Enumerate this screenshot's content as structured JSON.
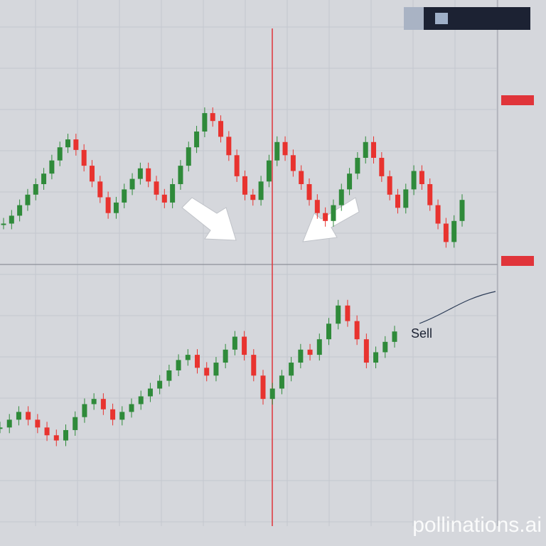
{
  "chart_data": [
    {
      "type": "candlestick",
      "values": [
        15,
        18,
        22,
        26,
        30,
        34,
        39,
        44,
        47,
        43,
        37,
        31,
        25,
        19,
        23,
        28,
        32,
        36,
        31,
        26,
        23,
        30,
        37,
        44,
        50,
        57,
        54,
        48,
        41,
        33,
        26,
        24,
        31,
        39,
        46,
        41,
        35,
        30,
        24,
        19,
        16,
        22,
        28,
        34,
        40,
        46,
        40,
        33,
        26,
        21,
        28,
        35,
        30,
        22,
        15,
        8,
        16,
        24
      ],
      "colors": {
        "up": "#2f8a3a",
        "down": "#e8332f"
      }
    },
    {
      "type": "candlestick",
      "values": [
        38,
        41,
        44,
        41,
        38,
        35,
        33,
        37,
        42,
        47,
        49,
        45,
        41,
        44,
        47,
        50,
        53,
        56,
        60,
        64,
        66,
        61,
        58,
        63,
        68,
        73,
        66,
        58,
        49,
        53,
        58,
        63,
        68,
        66,
        72,
        78,
        85,
        79,
        72,
        63,
        67,
        71,
        75
      ],
      "colors": {
        "up": "#2f8a3a",
        "down": "#e8332f"
      },
      "annotation": "Sell"
    }
  ],
  "watermark": "pollinations.ai"
}
